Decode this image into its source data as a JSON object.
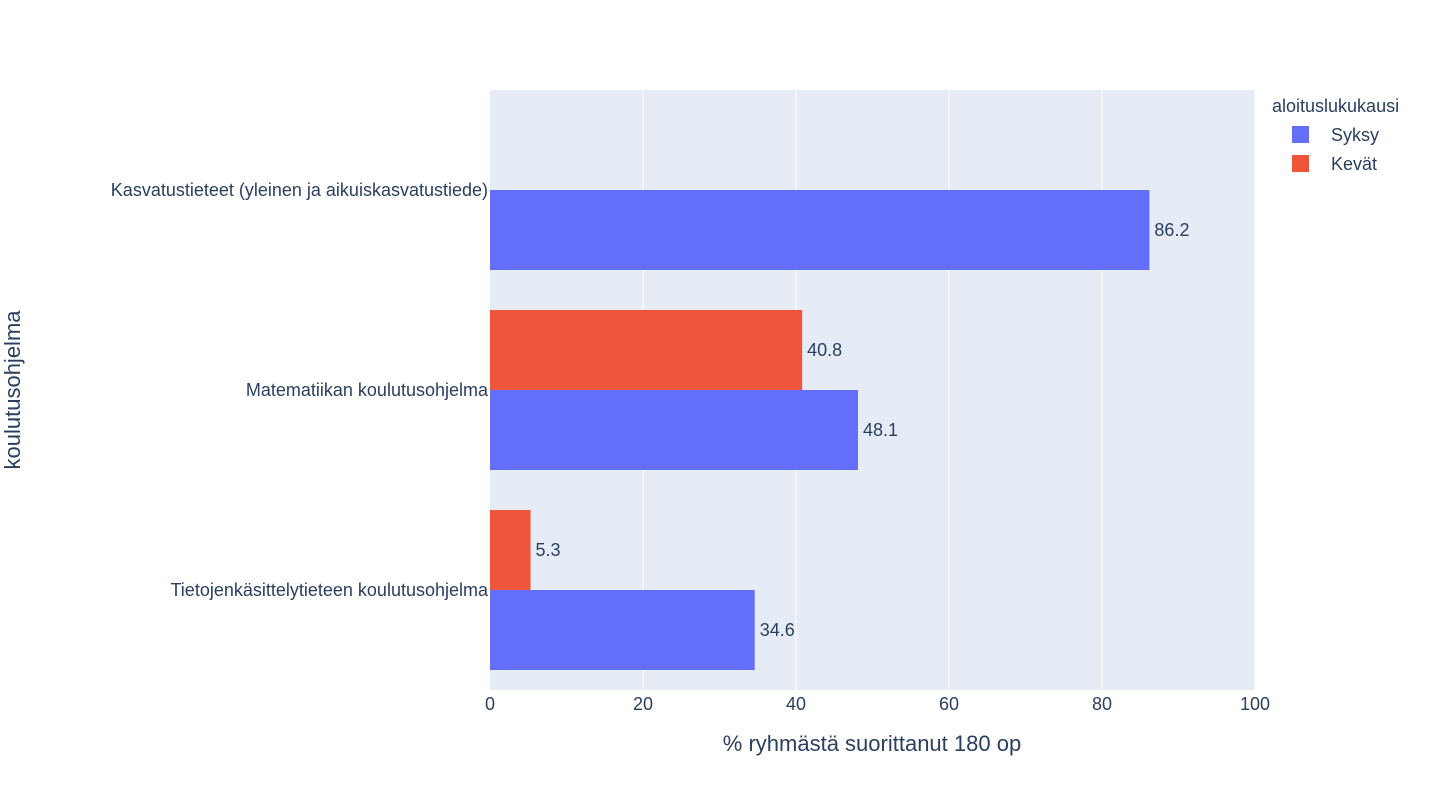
{
  "chart_data": {
    "type": "bar",
    "orientation": "horizontal",
    "barmode": "group",
    "categories": [
      "Kasvatustieteet (yleinen ja aikuiskasvatustiede)",
      "Matematiikan koulutusohjelma",
      "Tietojenkäsittelytieteen koulutusohjelma"
    ],
    "series": [
      {
        "name": "Syksy",
        "color": "#636efa",
        "values": [
          86.2,
          48.1,
          34.6
        ]
      },
      {
        "name": "Kevät",
        "color": "#ef553b",
        "values": [
          null,
          40.8,
          5.3
        ]
      }
    ],
    "xlabel": "% ryhmästä suorittanut 180 op",
    "ylabel": "koulutusohjelma",
    "xlim": [
      0,
      100
    ],
    "xticks": [
      0,
      20,
      40,
      60,
      80,
      100
    ],
    "grid": true,
    "plot_background": "#e5ecf6",
    "legend": {
      "title": "aloituslukukausi",
      "position": "top-right"
    }
  }
}
